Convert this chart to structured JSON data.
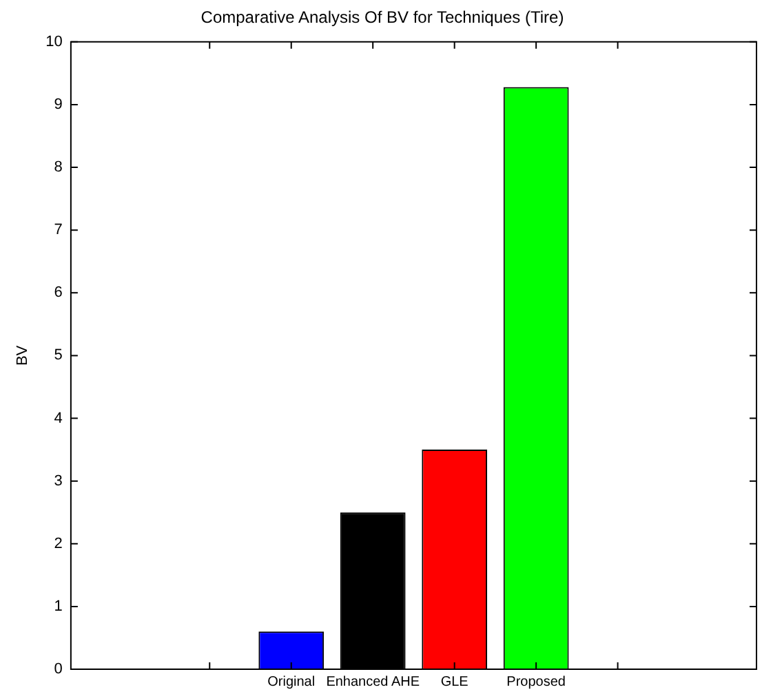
{
  "chart_data": {
    "type": "bar",
    "title": "Comparative Analysis Of BV for Techniques (Tire)",
    "ylabel": "BV",
    "categories": [
      null,
      "Original",
      "Enhanced AHE",
      "GLE",
      "Proposed",
      null
    ],
    "values": [
      0,
      0.6,
      2.5,
      3.5,
      9.28,
      0
    ],
    "colors": [
      "#0000ff",
      "#0000ff",
      "#000000",
      "#ff0000",
      "#00ff00",
      "#00ff00"
    ],
    "ylim": [
      0,
      10
    ],
    "yticks": [
      0,
      1,
      2,
      3,
      4,
      5,
      6,
      7,
      8,
      9,
      10
    ],
    "grid": false,
    "legend": false
  }
}
